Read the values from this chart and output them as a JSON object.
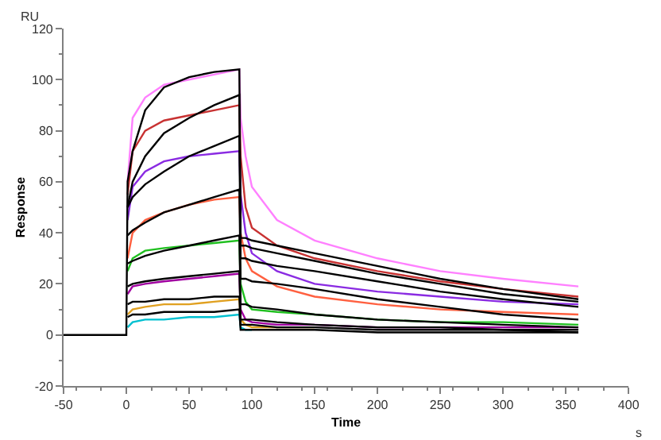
{
  "chart_data": {
    "type": "line",
    "xlabel": "Time",
    "ylabel": "Response",
    "annotations": [
      "RU",
      "s"
    ],
    "x": [
      -50,
      -1,
      0,
      1,
      5,
      15,
      30,
      50,
      70,
      90,
      91,
      95,
      100,
      120,
      150,
      200,
      250,
      300,
      360
    ],
    "series": [
      {
        "color": "#ff80ff",
        "values": [
          null,
          null,
          null,
          60,
          85,
          93,
          98,
          100,
          102,
          104,
          85,
          70,
          58,
          45,
          37,
          30,
          25,
          22,
          19
        ]
      },
      {
        "color": "#c83232",
        "values": [
          null,
          null,
          null,
          55,
          72,
          80,
          84,
          86,
          88,
          90,
          70,
          50,
          42,
          35,
          30,
          25,
          21,
          18,
          15
        ]
      },
      {
        "color": "#8a2be2",
        "values": [
          null,
          null,
          null,
          45,
          58,
          64,
          68,
          70,
          71,
          72,
          55,
          40,
          32,
          25,
          20,
          17,
          15,
          13,
          12
        ]
      },
      {
        "color": "#ff6040",
        "values": [
          null,
          null,
          null,
          30,
          40,
          45,
          48,
          51,
          53,
          54,
          40,
          30,
          25,
          19,
          15,
          12,
          10,
          9,
          8
        ]
      },
      {
        "color": "#20c020",
        "values": [
          null,
          null,
          null,
          25,
          30,
          33,
          34,
          35,
          36,
          37,
          20,
          13,
          10,
          9,
          8,
          6,
          5,
          5,
          4
        ]
      },
      {
        "color": "#a000a0",
        "values": [
          null,
          null,
          null,
          16,
          19,
          20,
          21,
          22,
          23,
          24,
          10,
          6,
          5,
          4,
          4,
          3,
          3,
          3,
          3
        ]
      },
      {
        "color": "#e0a020",
        "values": [
          null,
          null,
          null,
          8,
          10,
          11,
          12,
          12,
          13,
          14,
          6,
          4,
          3,
          3,
          3,
          null,
          null,
          null,
          null
        ]
      },
      {
        "color": "#00c0d0",
        "values": [
          null,
          null,
          null,
          3,
          5,
          6,
          6,
          7,
          7,
          8,
          3,
          2,
          2,
          null,
          null,
          null,
          null,
          null,
          null
        ]
      },
      {
        "color": "#000000",
        "values": [
          0,
          0,
          0,
          60,
          72,
          88,
          97,
          101,
          103,
          104,
          38,
          38,
          37,
          35,
          32,
          27,
          22,
          18,
          14
        ]
      },
      {
        "color": "#000000",
        "values": [
          null,
          null,
          null,
          50,
          60,
          70,
          79,
          85,
          90,
          94,
          35,
          35,
          34,
          32,
          29,
          24,
          20,
          16,
          13
        ]
      },
      {
        "color": "#000000",
        "values": [
          null,
          null,
          null,
          50,
          54,
          59,
          64,
          70,
          74,
          78,
          30,
          30,
          29,
          27,
          25,
          21,
          17,
          14,
          11
        ]
      },
      {
        "color": "#000000",
        "values": [
          null,
          null,
          null,
          39,
          41,
          44,
          48,
          51,
          54,
          57,
          22,
          22,
          21,
          20,
          18,
          14,
          11,
          8,
          6
        ]
      },
      {
        "color": "#000000",
        "values": [
          null,
          null,
          null,
          28,
          29,
          31,
          33,
          35,
          37,
          39,
          12,
          12,
          11,
          10,
          8,
          6,
          5,
          4,
          3
        ]
      },
      {
        "color": "#000000",
        "values": [
          null,
          null,
          null,
          19,
          20,
          21,
          22,
          23,
          24,
          25,
          6,
          6,
          6,
          5,
          4,
          3,
          3,
          2,
          2
        ]
      },
      {
        "color": "#000000",
        "values": [
          null,
          null,
          null,
          12,
          13,
          13,
          14,
          14,
          15,
          15,
          4,
          4,
          4,
          3,
          3,
          2,
          2,
          2,
          1
        ]
      },
      {
        "color": "#000000",
        "values": [
          null,
          null,
          null,
          7,
          8,
          8,
          9,
          9,
          9,
          10,
          2,
          2,
          2,
          2,
          2,
          1,
          1,
          1,
          1
        ]
      }
    ],
    "xlim": [
      -50,
      400
    ],
    "xticks": [
      -50,
      0,
      50,
      100,
      150,
      200,
      250,
      300,
      350,
      400
    ],
    "ylim": [
      -20,
      120
    ],
    "yticks": [
      -20,
      0,
      20,
      40,
      60,
      80,
      100,
      120
    ],
    "marker": "none",
    "line_style": "solid"
  }
}
